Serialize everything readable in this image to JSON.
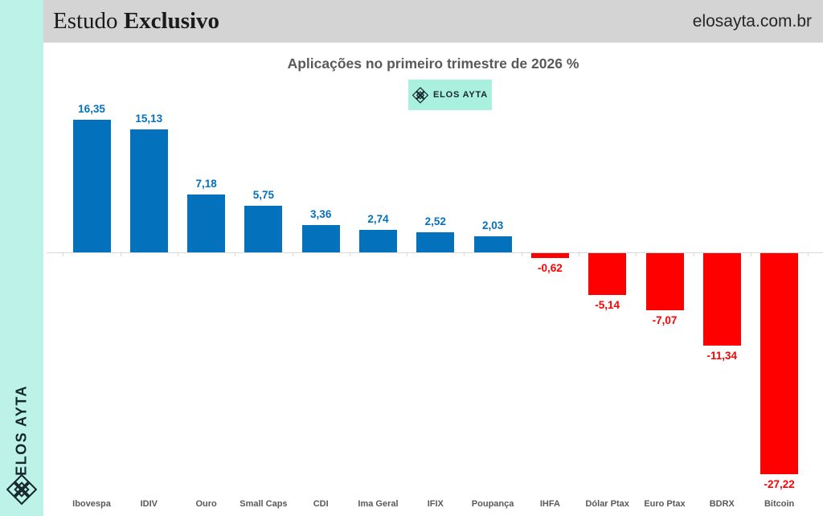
{
  "sidebar": {
    "brand": "ELOS AYTA",
    "background": "#bdf2e8",
    "logo_icon": "lattice-diamond-icon"
  },
  "header": {
    "brand_regular": "Estudo",
    "brand_bold": "Exclusivo",
    "website": "elosayta.com.br",
    "background": "#d4d4d4"
  },
  "legend_badge": {
    "label": "ELOS AYTA",
    "icon": "lattice-diamond-icon",
    "background": "#aaf0de"
  },
  "chart_data": {
    "type": "bar",
    "title": "Aplicações no primeiro trimestre de 2026 %",
    "categories": [
      "Ibovespa",
      "IDIV",
      "Ouro",
      "Small Caps",
      "CDI",
      "Ima Geral",
      "IFIX",
      "Poupança",
      "IHFA",
      "Dólar Ptax",
      "Euro Ptax",
      "BDRX",
      "Bitcoin"
    ],
    "values": [
      16.35,
      15.13,
      7.18,
      5.75,
      3.36,
      2.74,
      2.52,
      2.03,
      -0.62,
      -5.14,
      -7.07,
      -11.34,
      -27.22
    ],
    "value_labels": [
      "16,35",
      "15,13",
      "7,18",
      "5,75",
      "3,36",
      "2,74",
      "2,52",
      "2,03",
      "-0,62",
      "-5,14",
      "-7,07",
      "-11,34",
      "-27,22"
    ],
    "positive_color": "#0471bc",
    "negative_color": "#fe0000",
    "value_label_positive_color": "#0471bc",
    "value_label_negative_color": "#fe0000",
    "category_label_color": "#595959",
    "xlabel": "",
    "ylabel": "",
    "ylim": [
      -28,
      17
    ],
    "grid": false,
    "legend_position": "top-center",
    "axis_color": "#d9d9d9"
  }
}
